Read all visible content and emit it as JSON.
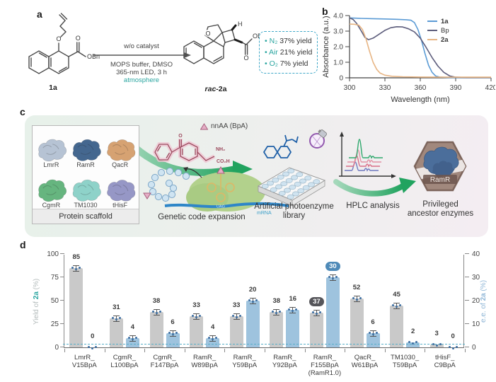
{
  "figure": {
    "panel_labels": {
      "a": "a",
      "b": "b",
      "c": "c",
      "d": "d"
    }
  },
  "panel_a": {
    "compound_left": "1a",
    "product_prefix": "rac",
    "product_suffix": "-2a",
    "above_arrow": "w/o catalyst",
    "cond1": "MOPS buffer, DMSO",
    "cond2": "365-nm LED, 3 h",
    "cond3": "atmosphere",
    "accent_color": "#2aa5a0",
    "atoms": {
      "o1": "O",
      "obn1": "OBn",
      "o2": "O",
      "h": "H",
      "obn2": "OBn"
    },
    "yield_bullet": "•",
    "yield_entries": [
      {
        "species": "N₂",
        "value": "37% yield"
      },
      {
        "species": "Air",
        "value": "21% yield"
      },
      {
        "species": "O₂",
        "value": "7% yield"
      }
    ]
  },
  "panel_c": {
    "scaffold_title": "Protein scaffold",
    "proteins": [
      {
        "name": "LmrR",
        "color": "#b6c3d4"
      },
      {
        "name": "RamR",
        "color": "#44678f"
      },
      {
        "name": "QacR",
        "color": "#d6a272"
      },
      {
        "name": "CgmR",
        "color": "#66b57f"
      },
      {
        "name": "TM1030",
        "color": "#8ed2c9"
      },
      {
        "name": "tHisF",
        "color": "#9697c6"
      }
    ],
    "nnaa_label": "nnAA (BpA)",
    "bpa_atoms": {
      "o": "O",
      "nh2": "NH₂",
      "co2h": "CO₂H"
    },
    "genetic_label": "Genetic code expansion",
    "uag_label": "UAG",
    "mrna_label": "mRNA",
    "library_label_1": "Artificial photoenzyme",
    "library_label_2": "library",
    "hplc_label": "HPLC analysis",
    "hexagon_protein": "RamR",
    "privileged_label_1": "Privileged",
    "privileged_label_2": "ancestor enzymes"
  },
  "chart_data": [
    {
      "type": "line",
      "panel": "b",
      "xlabel": "Wavelength (nm)",
      "ylabel": "Absorbance (a.u.)",
      "xlim": [
        300,
        420
      ],
      "ylim": [
        0,
        4.0
      ],
      "xticks": [
        300,
        330,
        360,
        390,
        420
      ],
      "ytick_labels": [
        "0",
        "1.0",
        "2.0",
        "3.0",
        "4.0"
      ],
      "ytick_values": [
        0,
        1,
        2,
        3,
        4
      ],
      "legend_position": "top-right",
      "series": [
        {
          "name": "1a",
          "bold": true,
          "color": "#5b9bd5",
          "points": [
            [
              300,
              3.85
            ],
            [
              310,
              3.82
            ],
            [
              320,
              3.8
            ],
            [
              330,
              3.78
            ],
            [
              340,
              3.76
            ],
            [
              348,
              3.73
            ],
            [
              352,
              3.7
            ],
            [
              355,
              3.55
            ],
            [
              358,
              3.1
            ],
            [
              361,
              2.4
            ],
            [
              364,
              1.55
            ],
            [
              367,
              0.8
            ],
            [
              370,
              0.35
            ],
            [
              373,
              0.12
            ],
            [
              377,
              0.04
            ],
            [
              385,
              0.02
            ],
            [
              400,
              0.02
            ],
            [
              420,
              0.02
            ]
          ]
        },
        {
          "name": "Bp",
          "bold": false,
          "color": "#5d5d7c",
          "points": [
            [
              300,
              3.85
            ],
            [
              303,
              3.75
            ],
            [
              306,
              3.5
            ],
            [
              310,
              3.0
            ],
            [
              313,
              2.6
            ],
            [
              316,
              2.45
            ],
            [
              320,
              2.55
            ],
            [
              325,
              2.8
            ],
            [
              330,
              3.05
            ],
            [
              335,
              3.22
            ],
            [
              340,
              3.28
            ],
            [
              345,
              3.27
            ],
            [
              350,
              3.15
            ],
            [
              355,
              2.95
            ],
            [
              360,
              2.55
            ],
            [
              365,
              1.95
            ],
            [
              370,
              1.3
            ],
            [
              375,
              0.75
            ],
            [
              380,
              0.35
            ],
            [
              385,
              0.12
            ],
            [
              390,
              0.04
            ],
            [
              400,
              0.02
            ],
            [
              420,
              0.02
            ]
          ]
        },
        {
          "name": "2a",
          "bold": true,
          "color": "#e7b584",
          "points": [
            [
              300,
              3.45
            ],
            [
              304,
              3.44
            ],
            [
              308,
              3.38
            ],
            [
              311,
              3.1
            ],
            [
              314,
              2.5
            ],
            [
              317,
              1.7
            ],
            [
              320,
              1.0
            ],
            [
              323,
              0.55
            ],
            [
              326,
              0.3
            ],
            [
              330,
              0.17
            ],
            [
              336,
              0.1
            ],
            [
              345,
              0.07
            ],
            [
              360,
              0.05
            ],
            [
              390,
              0.04
            ],
            [
              420,
              0.04
            ]
          ]
        }
      ]
    },
    {
      "type": "bar",
      "panel": "d",
      "categories": [
        [
          "LmrR_",
          "V15BpA"
        ],
        [
          "CgmR_",
          "L100BpA"
        ],
        [
          "CgmR_",
          "F147BpA"
        ],
        [
          "RamR_",
          "W89BpA"
        ],
        [
          "RamR_",
          "Y59BpA"
        ],
        [
          "RamR_",
          "Y92BpA"
        ],
        [
          "RamR_",
          "F155BpA",
          "(RamR1.0)"
        ],
        [
          "QacR_",
          "W61BpA"
        ],
        [
          "TM1030_",
          "T59BpA"
        ],
        [
          "tHisF_",
          "C9BpA"
        ]
      ],
      "series": [
        {
          "name": "Yield of 2a (%)",
          "axis": "left",
          "color": "#c9c9c9",
          "values": [
            85,
            31,
            38,
            33,
            33,
            38,
            37,
            52,
            45,
            3
          ]
        },
        {
          "name": "e.e. of 2a (%)",
          "axis": "right",
          "color": "#9ec3de",
          "values": [
            0,
            4,
            6,
            4,
            20,
            16,
            30,
            6,
            2,
            0
          ]
        }
      ],
      "left_axis": {
        "label_pre": "Yield of ",
        "label_em": "2a",
        "label_post": " (%)",
        "ticks": [
          0,
          25,
          50,
          75,
          100
        ],
        "max": 100,
        "color": "#b4bcbc",
        "em_color": "#2aa5a0"
      },
      "right_axis": {
        "label_pre": "e.e. of ",
        "label_em": "2a",
        "label_post": " (%)",
        "ticks": [
          0,
          10,
          20,
          30,
          40
        ],
        "max": 40,
        "color": "#8fb6d6"
      },
      "baseline_value": 3,
      "baseline_color": "#56aec8",
      "highlight_index": 6,
      "badge_colors": {
        "left": "#55555a",
        "right": "#4e8ab8"
      },
      "point_color": "#3d6fa3",
      "grid": false
    }
  ]
}
